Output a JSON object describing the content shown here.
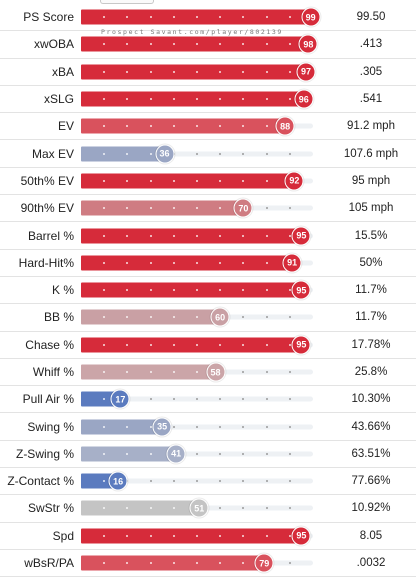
{
  "watermark": "Prospect Savant.com/player/802139",
  "colors": {
    "track": "#eef1f4",
    "elite_red": "#d62b3a",
    "good_red": "#d96a72",
    "above_pink": "#c98a90",
    "average_gray": "#c4c4c4",
    "below_blue": "#9aa6c4",
    "poor_blue": "#5b7bbf"
  },
  "rows": [
    {
      "label": "PS Score",
      "percentile": 99,
      "value": "99.50",
      "color": "#d62b3a"
    },
    {
      "label": "xwOBA",
      "percentile": 98,
      "value": ".413",
      "color": "#d62b3a"
    },
    {
      "label": "xBA",
      "percentile": 97,
      "value": ".305",
      "color": "#d62b3a"
    },
    {
      "label": "xSLG",
      "percentile": 96,
      "value": ".541",
      "color": "#d62b3a"
    },
    {
      "label": "EV",
      "percentile": 88,
      "value": "91.2 mph",
      "color": "#d9525d"
    },
    {
      "label": "Max EV",
      "percentile": 36,
      "value": "107.6 mph",
      "color": "#9aa6c4"
    },
    {
      "label": "50th% EV",
      "percentile": 92,
      "value": "95 mph",
      "color": "#d62b3a"
    },
    {
      "label": "90th% EV",
      "percentile": 70,
      "value": "105 mph",
      "color": "#cf7c82"
    },
    {
      "label": "Barrel %",
      "percentile": 95,
      "value": "15.5%",
      "color": "#d62b3a"
    },
    {
      "label": "Hard-Hit%",
      "percentile": 91,
      "value": "50%",
      "color": "#d62b3a"
    },
    {
      "label": "K %",
      "percentile": 95,
      "value": "11.7%",
      "color": "#d62b3a"
    },
    {
      "label": "BB %",
      "percentile": 60,
      "value": "11.7%",
      "color": "#c9a0a4"
    },
    {
      "label": "Chase %",
      "percentile": 95,
      "value": "17.78%",
      "color": "#d62b3a"
    },
    {
      "label": "Whiff %",
      "percentile": 58,
      "value": "25.8%",
      "color": "#cba5a8"
    },
    {
      "label": "Pull Air %",
      "percentile": 17,
      "value": "10.30%",
      "color": "#5b7bbf"
    },
    {
      "label": "Swing %",
      "percentile": 35,
      "value": "43.66%",
      "color": "#9aa6c4"
    },
    {
      "label": "Z-Swing %",
      "percentile": 41,
      "value": "63.51%",
      "color": "#a7b0c8"
    },
    {
      "label": "Z-Contact %",
      "percentile": 16,
      "value": "77.66%",
      "color": "#5b7bbf"
    },
    {
      "label": "SwStr %",
      "percentile": 51,
      "value": "10.92%",
      "color": "#c4c4c4"
    },
    {
      "label": "Spd",
      "percentile": 95,
      "value": "8.05",
      "color": "#d62b3a"
    },
    {
      "label": "wBsR/PA",
      "percentile": 79,
      "value": ".0032",
      "color": "#d9525d"
    }
  ]
}
